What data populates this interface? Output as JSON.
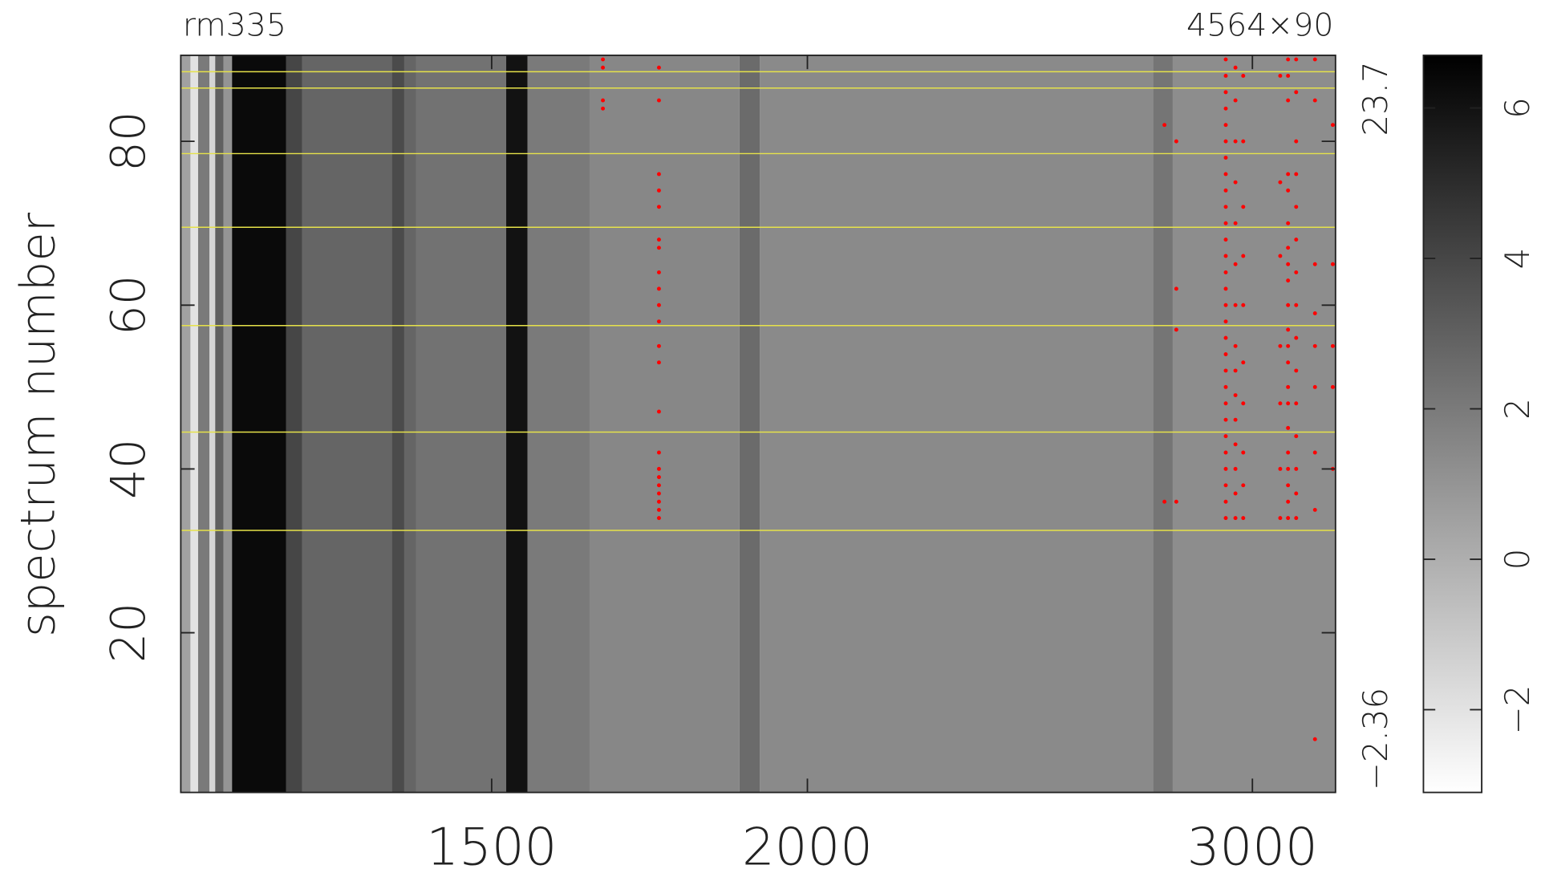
{
  "chart_data": {
    "type": "heatmap",
    "title": "rm335",
    "image_size": "4564×90",
    "ylabel": "spectrum number",
    "xscale": "log",
    "xlim": [
      1130,
      3236
    ],
    "xticks": [
      1500,
      2000,
      3000
    ],
    "ylim": [
      0.5,
      90.5
    ],
    "yticks": [
      20,
      40,
      60,
      80
    ],
    "data_range": [
      {
        "value": -2.36,
        "label": "−2.36"
      },
      23.7
    ],
    "zlim": [
      -3.1,
      6.7
    ],
    "zticks": [
      {
        "value": -2,
        "label": "−2"
      },
      0,
      2,
      4,
      6
    ],
    "colormap": [
      "#ffffff",
      "#000000"
    ],
    "bands": [
      {
        "x": [
          1130,
          1140
        ],
        "value": 0.5
      },
      {
        "x": [
          1140,
          1148
        ],
        "value": -2
      },
      {
        "x": [
          1148,
          1160
        ],
        "value": 2
      },
      {
        "x": [
          1160,
          1166
        ],
        "value": -1.5
      },
      {
        "x": [
          1166,
          1175
        ],
        "value": 3
      },
      {
        "x": [
          1175,
          1184
        ],
        "value": 1
      },
      {
        "x": [
          1184,
          1244
        ],
        "value": 6.3
      },
      {
        "x": [
          1244,
          1262
        ],
        "value": 4
      },
      {
        "x": [
          1262,
          1400
        ],
        "value": 2.8
      },
      {
        "x": [
          1370,
          1385
        ],
        "value": 3.8
      },
      {
        "x": [
          1400,
          1520
        ],
        "value": 2.3
      },
      {
        "x": [
          1520,
          1550
        ],
        "value": 6
      },
      {
        "x": [
          1550,
          1640
        ],
        "value": 2
      },
      {
        "x": [
          1640,
          1880
        ],
        "value": 1.5
      },
      {
        "x": [
          1880,
          1915
        ],
        "value": 2.6
      },
      {
        "x": [
          1915,
          2740
        ],
        "value": 1.4
      },
      {
        "x": [
          2740,
          2790
        ],
        "value": 2.2
      },
      {
        "x": [
          2790,
          3236
        ],
        "value": 1.3
      }
    ],
    "hlines": {
      "color": "#e6e24a",
      "values": [
        32.5,
        44.5,
        57.5,
        69.5,
        78.5,
        86.5,
        88.5
      ]
    },
    "flags": {
      "color": "#ff0000",
      "x": [
        1660,
        1660,
        1660,
        1660,
        1747,
        1747,
        1747,
        1747,
        1747,
        1747,
        1747,
        1747,
        1747,
        1747,
        1747,
        1747,
        1747,
        1747,
        1747,
        1747,
        1747,
        1747,
        1747,
        1747,
        1747,
        1747,
        2769,
        2769,
        2799,
        2799,
        2799,
        2799,
        2928,
        2928,
        2928,
        2928,
        2928,
        2928,
        2928,
        2928,
        2928,
        2928,
        2928,
        2928,
        2928,
        2928,
        2928,
        2928,
        2928,
        2928,
        2928,
        2928,
        2928,
        2928,
        2928,
        2928,
        2928,
        2928,
        2928,
        2928,
        2928,
        2954,
        2954,
        2954,
        2954,
        2954,
        2954,
        2954,
        2954,
        2954,
        2954,
        2954,
        2954,
        2954,
        2954,
        2954,
        2975,
        2975,
        2975,
        2975,
        2975,
        2975,
        2975,
        2975,
        2975,
        2975,
        3077,
        3077,
        3077,
        3077,
        3077,
        3077,
        3077,
        3099,
        3099,
        3099,
        3099,
        3099,
        3099,
        3099,
        3099,
        3099,
        3099,
        3099,
        3099,
        3099,
        3099,
        3099,
        3099,
        3099,
        3099,
        3099,
        3099,
        3099,
        3122,
        3122,
        3122,
        3122,
        3122,
        3122,
        3122,
        3122,
        3122,
        3122,
        3122,
        3122,
        3122,
        3122,
        3122,
        3176,
        3176,
        3176,
        3176,
        3176,
        3176,
        3176,
        3176,
        3176,
        3228,
        3228,
        3228,
        3228,
        3228
      ],
      "y": [
        90,
        89,
        85,
        84,
        89,
        85,
        76,
        74,
        72,
        68,
        67,
        64,
        62,
        60,
        58,
        55,
        53,
        47,
        42,
        40,
        39,
        38,
        37,
        36,
        35,
        34,
        82,
        36,
        80,
        62,
        57,
        36,
        34,
        36,
        38,
        40,
        42,
        44,
        46,
        48,
        50,
        52,
        54,
        56,
        58,
        60,
        62,
        64,
        66,
        68,
        70,
        72,
        74,
        76,
        78,
        80,
        82,
        84,
        86,
        88,
        90,
        34,
        37,
        40,
        43,
        46,
        49,
        52,
        55,
        60,
        65,
        70,
        75,
        80,
        85,
        89,
        34,
        38,
        42,
        48,
        53,
        60,
        66,
        72,
        80,
        88,
        34,
        40,
        48,
        55,
        66,
        75,
        88,
        34,
        36,
        38,
        40,
        42,
        45,
        48,
        50,
        53,
        55,
        57,
        60,
        63,
        65,
        67,
        70,
        74,
        76,
        85,
        88,
        90,
        34,
        37,
        40,
        44,
        48,
        52,
        56,
        60,
        64,
        68,
        72,
        76,
        80,
        86,
        90,
        7,
        35,
        42,
        50,
        55,
        59,
        65,
        85,
        90,
        40,
        50,
        55,
        65,
        82
      ]
    }
  }
}
